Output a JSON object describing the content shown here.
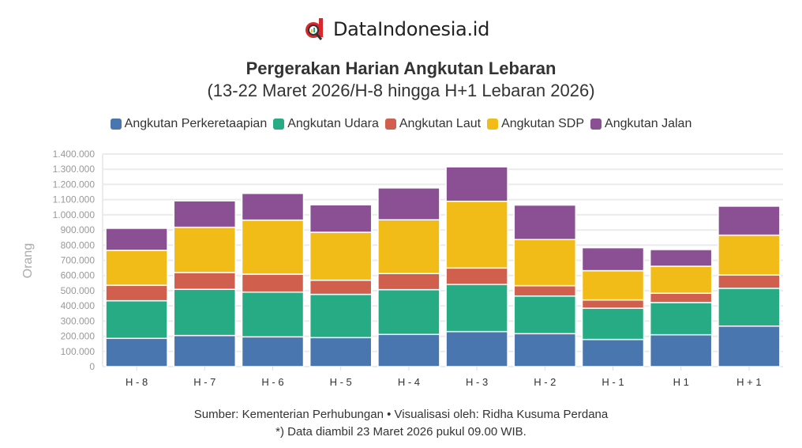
{
  "logo": {
    "text": "DataIndonesia.id"
  },
  "chart_data": {
    "type": "bar",
    "stacked": true,
    "title": "Pergerakan Harian Angkutan Lebaran",
    "subtitle": "(13-22 Maret 2026/H-8 hingga H+1 Lebaran 2026)",
    "xlabel": "",
    "ylabel": "Orang",
    "ylim": [
      0,
      1400000
    ],
    "yticks": [
      0,
      100000,
      200000,
      300000,
      400000,
      500000,
      600000,
      700000,
      800000,
      900000,
      1000000,
      1100000,
      1200000,
      1300000,
      1400000
    ],
    "ytick_labels": [
      "0",
      "100.000",
      "200.000",
      "300.000",
      "400.000",
      "500.000",
      "600.000",
      "700.000",
      "800.000",
      "900.000",
      "1.000.000",
      "1.100.000",
      "1.200.000",
      "1.300.000",
      "1.400.000"
    ],
    "grid": true,
    "legend_position": "top",
    "categories": [
      "H - 8",
      "H - 7",
      "H - 6",
      "H - 5",
      "H - 4",
      "H - 3",
      "H - 2",
      "H - 1",
      "H 1",
      "H + 1"
    ],
    "series": [
      {
        "name": "Angkutan Perkeretaapian",
        "color": "#4a76b0",
        "values": [
          186000,
          205000,
          196000,
          191000,
          212000,
          231000,
          217000,
          179000,
          210000,
          267000
        ]
      },
      {
        "name": "Angkutan Udara",
        "color": "#26ab84",
        "values": [
          248000,
          304000,
          295000,
          285000,
          295000,
          311000,
          248000,
          206000,
          212000,
          249000
        ]
      },
      {
        "name": "Angkutan Laut",
        "color": "#d05f4d",
        "values": [
          102000,
          111000,
          118000,
          93000,
          106000,
          107000,
          68000,
          54000,
          61000,
          88000
        ]
      },
      {
        "name": "Angkutan SDP",
        "color": "#f2bc18",
        "values": [
          230000,
          298000,
          356000,
          316000,
          354000,
          440000,
          304000,
          193000,
          178000,
          262000
        ]
      },
      {
        "name": "Angkutan Jalan",
        "color": "#8b5094",
        "values": [
          145000,
          174000,
          176000,
          181000,
          210000,
          227000,
          227000,
          151000,
          110000,
          191000
        ]
      }
    ]
  },
  "footer": {
    "source": "Sumber: Kementerian Perhubungan • Visualisasi oleh: Ridha Kusuma Perdana",
    "note": "*) Data diambil 23 Maret 2026 pukul 09.00 WIB."
  }
}
